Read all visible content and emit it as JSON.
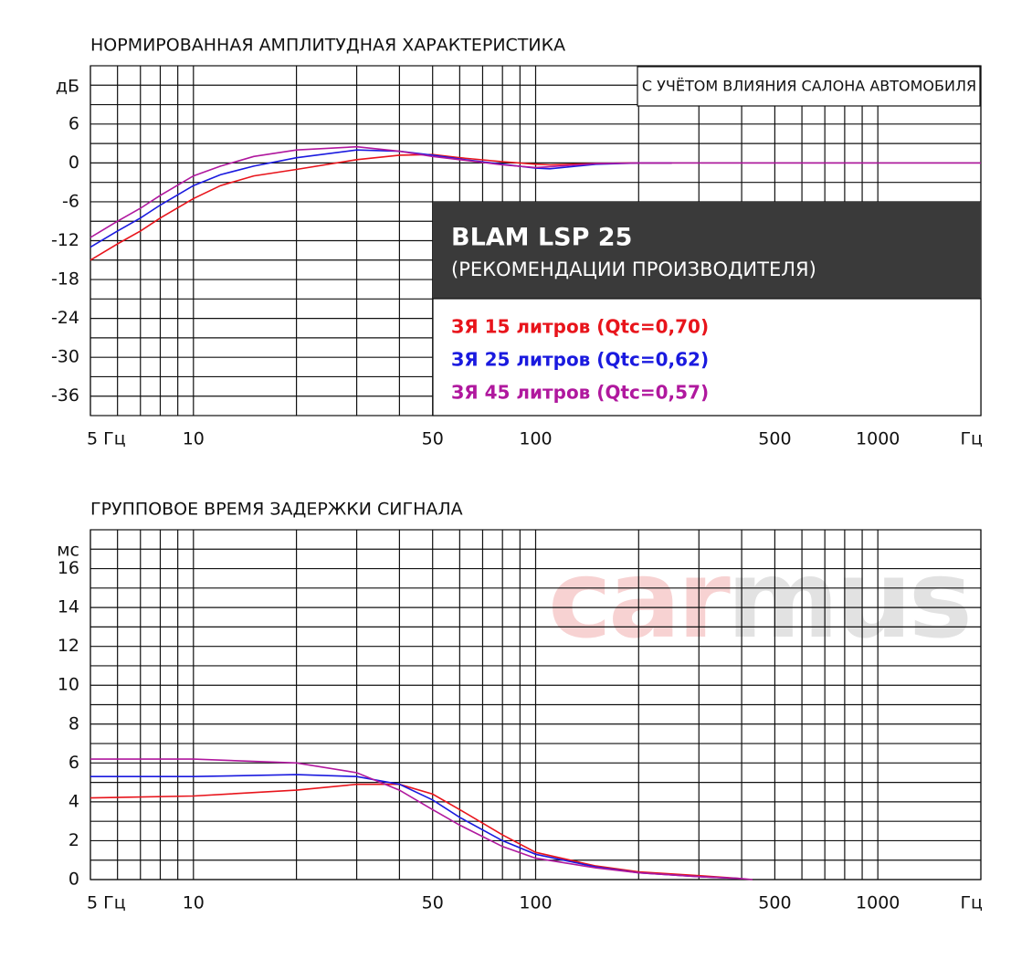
{
  "chart_data": [
    {
      "type": "line",
      "title": "НОРМИРОВАННАЯ АМПЛИТУДНАЯ ХАРАКТЕРИСТИКА",
      "y_label": "дБ",
      "annotation": "С УЧЁТОМ ВЛИЯНИЯ САЛОНА АВТОМОБИЛЯ",
      "legend_title": "BLAM LSP 25",
      "legend_subtitle": "(РЕКОМЕНДАЦИИ ПРОИЗВОДИТЕЛЯ)",
      "log_x": true,
      "grid": true,
      "x": [
        5,
        6,
        7,
        8,
        10,
        12,
        15,
        20,
        30,
        40,
        50,
        60,
        80,
        100,
        110,
        150,
        200,
        250,
        2000
      ],
      "series": [
        {
          "name": "ЗЯ 15 литров (Qtc=0,70)",
          "color": "#e8141b",
          "values": [
            -15,
            -12.5,
            -10.5,
            -8.5,
            -5.5,
            -3.5,
            -2,
            -1,
            0.5,
            1.2,
            1.3,
            0.8,
            0.2,
            -0.2,
            -0.3,
            -0.1,
            0,
            0,
            null
          ]
        },
        {
          "name": "ЗЯ 25 литров (Qtc=0,62)",
          "color": "#1a1adf",
          "values": [
            -13,
            -10.5,
            -8.5,
            -6.5,
            -3.5,
            -1.8,
            -0.5,
            0.8,
            2,
            1.8,
            1.2,
            0.6,
            -0.2,
            -0.8,
            -0.9,
            -0.2,
            0,
            0,
            null
          ]
        },
        {
          "name": "ЗЯ 45 литров (Qtc=0,57)",
          "color": "#b0189e",
          "values": [
            -11.5,
            -9,
            -7,
            -5,
            -2,
            -0.5,
            1,
            2,
            2.5,
            1.8,
            1,
            0.5,
            -0.3,
            -0.7,
            -0.6,
            -0.1,
            0,
            0,
            0
          ]
        }
      ],
      "xlim": [
        5,
        2000
      ],
      "ylim": [
        -39,
        15
      ],
      "xticks": [
        {
          "value": 5,
          "label": "5 Гц"
        },
        10,
        50,
        100,
        500,
        1000,
        {
          "value": 2000,
          "label": "Гц"
        }
      ],
      "minor_xticks": [
        6,
        7,
        8,
        9,
        20,
        30,
        40,
        60,
        70,
        80,
        90,
        200,
        300,
        400,
        600,
        700,
        800,
        900
      ],
      "yticks": [
        6,
        0,
        -6,
        -12,
        -18,
        -24,
        -30,
        -36
      ],
      "minor_yticks": [
        12,
        9,
        3,
        -3,
        -9,
        -15,
        -21,
        -27,
        -33
      ]
    },
    {
      "type": "line",
      "title": "ГРУППОВОЕ ВРЕМЯ ЗАДЕРЖКИ СИГНАЛА",
      "y_label": "мс",
      "watermark": [
        "car",
        "mus"
      ],
      "log_x": true,
      "grid": true,
      "x": [
        5,
        10,
        20,
        30,
        40,
        50,
        60,
        80,
        100,
        150,
        200,
        300,
        400,
        430
      ],
      "series": [
        {
          "color": "#e8141b",
          "values": [
            4.2,
            4.3,
            4.6,
            4.9,
            4.9,
            4.4,
            3.6,
            2.3,
            1.4,
            0.7,
            0.4,
            0.2,
            0.05,
            null
          ]
        },
        {
          "color": "#1a1adf",
          "values": [
            5.3,
            5.3,
            5.4,
            5.3,
            4.9,
            4.1,
            3.2,
            2.0,
            1.3,
            0.65,
            0.35,
            0.15,
            0.05,
            null
          ]
        },
        {
          "color": "#b0189e",
          "values": [
            6.2,
            6.2,
            6.0,
            5.5,
            4.6,
            3.6,
            2.8,
            1.7,
            1.1,
            0.6,
            0.35,
            0.15,
            0.05,
            0
          ]
        }
      ],
      "xlim": [
        5,
        2000
      ],
      "ylim": [
        0,
        18
      ],
      "xticks": [
        {
          "value": 5,
          "label": "5 Гц"
        },
        10,
        50,
        100,
        500,
        1000,
        {
          "value": 2000,
          "label": "Гц"
        }
      ],
      "minor_xticks": [
        6,
        7,
        8,
        9,
        20,
        30,
        40,
        60,
        70,
        80,
        90,
        200,
        300,
        400,
        600,
        700,
        800,
        900
      ],
      "yticks": [
        16,
        14,
        12,
        10,
        8,
        6,
        4,
        2,
        0
      ],
      "minor_yticks": [
        17,
        15,
        13,
        11,
        9,
        7,
        5,
        3,
        1
      ]
    }
  ]
}
